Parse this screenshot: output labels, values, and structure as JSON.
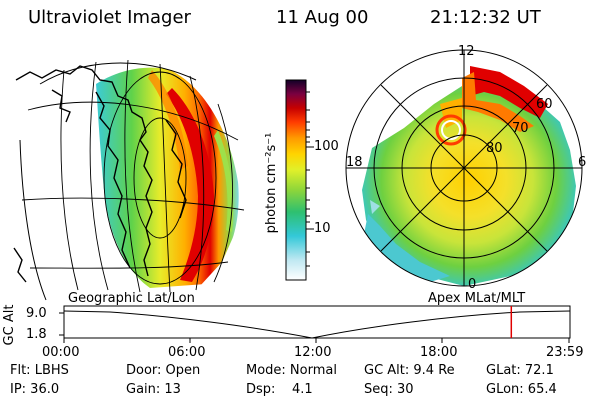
{
  "header": {
    "instrument": "Ultraviolet Imager",
    "date": "11 Aug 00",
    "time": "21:12:32 UT"
  },
  "colorbar": {
    "unit_label": "photon cm⁻²s⁻¹",
    "ticks": [
      "100",
      "10"
    ]
  },
  "polar_plot": {
    "mlt_labels": {
      "top": "12",
      "left": "18",
      "right": "6",
      "bottom": "0"
    },
    "lat_labels": [
      "60",
      "70",
      "80"
    ]
  },
  "timeline": {
    "left_title": "Geographic Lat/Lon",
    "right_title": "Apex MLat/MLT",
    "axis_label": "GC Alt",
    "y_ticks": [
      "9.0",
      "1.8"
    ],
    "x_ticks": [
      "00:00",
      "06:00",
      "12:00",
      "18:00",
      "23:59"
    ],
    "current_time_fraction": 0.884
  },
  "info": {
    "row1": {
      "filter": "Flt: LBHS",
      "door": "Door: Open",
      "mode": "Mode: Normal",
      "gc_alt": "GC Alt: 9.4 Re",
      "glat": "GLat: 72.1"
    },
    "row2": {
      "ip": "IP: 36.0",
      "gain": "Gain: 13",
      "dsp": "Dsp:    4.1",
      "seq": "Seq: 30",
      "glon": "GLon: 65.4"
    }
  },
  "colors": {
    "background": "#ffffff",
    "marker": "#e00000"
  }
}
